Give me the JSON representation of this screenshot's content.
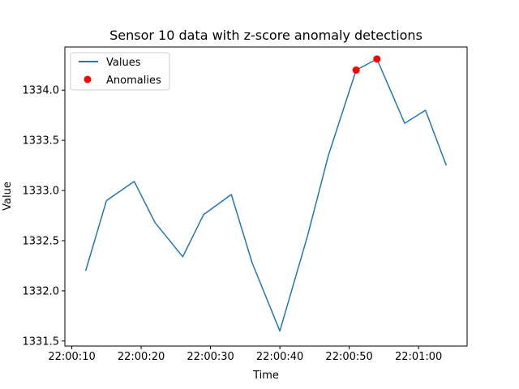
{
  "chart_data": {
    "type": "line",
    "title": "Sensor 10 data with z-score anomaly detections",
    "xlabel": "Time",
    "ylabel": "Value",
    "x": [
      "22:00:12",
      "22:00:15",
      "22:00:19",
      "22:00:22",
      "22:00:26",
      "22:00:29",
      "22:00:33",
      "22:00:36",
      "22:00:40",
      "22:00:44",
      "22:00:47",
      "22:00:51",
      "22:00:54",
      "22:00:58",
      "22:01:01",
      "22:01:04"
    ],
    "series": [
      {
        "name": "Values",
        "color": "#1f77b4",
        "values": [
          1332.2,
          1332.9,
          1333.09,
          1332.68,
          1332.34,
          1332.76,
          1332.96,
          1332.28,
          1331.6,
          1332.55,
          1333.35,
          1334.2,
          1334.31,
          1333.67,
          1333.8,
          1333.25
        ]
      },
      {
        "name": "Anomalies",
        "color": "#ff0000",
        "points": [
          {
            "x": "22:00:51",
            "y": 1334.2
          },
          {
            "x": "22:00:54",
            "y": 1334.31
          }
        ]
      }
    ],
    "xlim": [
      "22:00:09",
      "22:01:07"
    ],
    "ylim": [
      1331.45,
      1334.43
    ],
    "xticks": [
      "22:00:10",
      "22:00:20",
      "22:00:30",
      "22:00:40",
      "22:00:50",
      "22:01:00"
    ],
    "yticks": [
      "1331.5",
      "1332.0",
      "1332.5",
      "1333.0",
      "1333.5",
      "1334.0"
    ],
    "grid": false,
    "legend_position": "top-left"
  }
}
